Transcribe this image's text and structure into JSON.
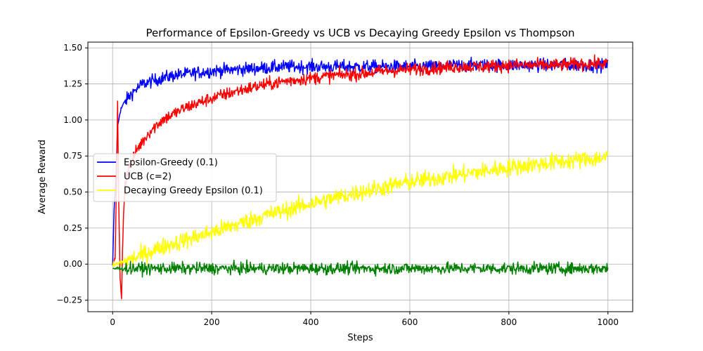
{
  "chart_data": {
    "type": "line",
    "title": "Performance of Epsilon-Greedy vs UCB vs Decaying Greedy Epsilon vs Thompson",
    "xlabel": "Steps",
    "ylabel": "Average Reward",
    "xlim": [
      -50,
      1050
    ],
    "ylim": [
      -0.33,
      1.54
    ],
    "xticks": [
      0,
      200,
      400,
      600,
      800,
      1000
    ],
    "xtick_labels": [
      "0",
      "200",
      "400",
      "600",
      "800",
      "1000"
    ],
    "yticks": [
      -0.25,
      0.0,
      0.25,
      0.5,
      0.75,
      1.0,
      1.25,
      1.5
    ],
    "ytick_labels": [
      "−0.25",
      "0.00",
      "0.25",
      "0.50",
      "0.75",
      "1.00",
      "1.25",
      "1.50"
    ],
    "grid": true,
    "legend_position": "center-left",
    "series": [
      {
        "name": "Epsilon-Greedy (0.1)",
        "color": "#0000ff",
        "x": [
          0,
          3,
          6,
          10,
          15,
          20,
          30,
          40,
          50,
          60,
          80,
          100,
          125,
          150,
          175,
          200,
          250,
          300,
          350,
          400,
          450,
          500,
          550,
          600,
          650,
          700,
          750,
          800,
          850,
          900,
          950,
          1000
        ],
        "y": [
          -0.02,
          0.38,
          0.55,
          0.95,
          1.06,
          1.1,
          1.15,
          1.19,
          1.22,
          1.25,
          1.27,
          1.29,
          1.31,
          1.32,
          1.33,
          1.34,
          1.35,
          1.36,
          1.37,
          1.37,
          1.37,
          1.37,
          1.37,
          1.37,
          1.37,
          1.38,
          1.38,
          1.38,
          1.38,
          1.38,
          1.38,
          1.38
        ]
      },
      {
        "name": "UCB (c=2)",
        "color": "#ff0000",
        "x": [
          0,
          5,
          8,
          10,
          12,
          15,
          18,
          20,
          22,
          25,
          30,
          40,
          50,
          75,
          100,
          150,
          200,
          250,
          300,
          350,
          400,
          450,
          500,
          550,
          600,
          650,
          700,
          750,
          800,
          850,
          900,
          950,
          1000
        ],
        "y": [
          0.0,
          0.05,
          0.6,
          1.12,
          0.5,
          -0.1,
          -0.24,
          0.1,
          0.35,
          0.55,
          0.65,
          0.72,
          0.8,
          0.92,
          1.0,
          1.09,
          1.15,
          1.2,
          1.24,
          1.27,
          1.29,
          1.31,
          1.32,
          1.34,
          1.35,
          1.36,
          1.37,
          1.37,
          1.38,
          1.38,
          1.38,
          1.39,
          1.39
        ]
      },
      {
        "name": "Decaying Greedy Epsilon (0.1)",
        "color": "#ffff00",
        "x": [
          0,
          50,
          100,
          200,
          300,
          400,
          500,
          600,
          700,
          800,
          900,
          1000
        ],
        "y": [
          -0.01,
          0.05,
          0.12,
          0.22,
          0.33,
          0.42,
          0.5,
          0.57,
          0.62,
          0.67,
          0.71,
          0.74
        ]
      },
      {
        "name": "",
        "color": "#008000",
        "x": [
          0,
          100,
          200,
          300,
          400,
          500,
          600,
          700,
          800,
          900,
          1000
        ],
        "y": [
          -0.03,
          -0.03,
          -0.03,
          -0.03,
          -0.03,
          -0.03,
          -0.03,
          -0.03,
          -0.03,
          -0.03,
          -0.03
        ]
      }
    ]
  }
}
